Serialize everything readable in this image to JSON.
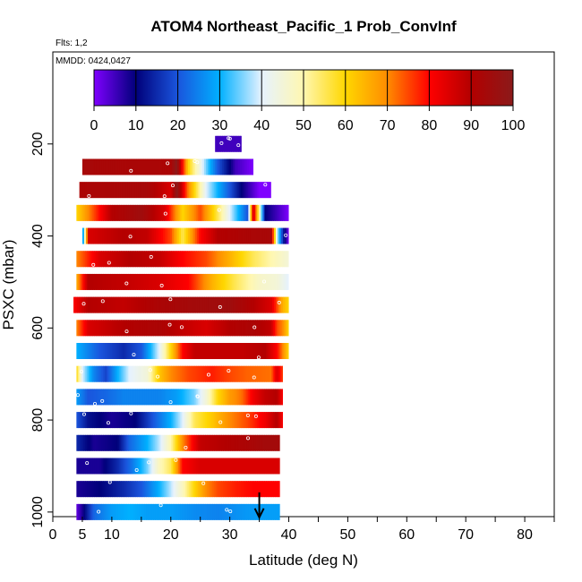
{
  "chart_data": {
    "type": "heatmap",
    "title": "ATOM4 Northeast_Pacific_1 Prob_ConvInf",
    "subtitle_flights": "Flts: 1,2",
    "subtitle_dates": "MMDD: 0424,0427",
    "xlabel": "Latitude (deg N)",
    "ylabel": "PSXC (mbar)",
    "xlim": [
      0,
      85
    ],
    "ylim": [
      1010,
      0
    ],
    "x_ticks": [
      "0",
      "5",
      "10",
      "20",
      "30",
      "40",
      "50",
      "60",
      "70",
      "80"
    ],
    "x_tick_values": [
      0,
      5,
      10,
      20,
      30,
      40,
      50,
      60,
      70,
      80
    ],
    "x_minor_ticks": [
      15,
      25,
      35,
      45,
      55,
      65,
      75,
      85
    ],
    "y_ticks": [
      "200",
      "400",
      "600",
      "800",
      "1000"
    ],
    "y_tick_values": [
      200,
      400,
      600,
      800,
      1000
    ],
    "colorbar": {
      "min": 0,
      "max": 100,
      "tick_labels": [
        "0",
        "10",
        "20",
        "30",
        "40",
        "50",
        "60",
        "70",
        "80",
        "90",
        "100"
      ],
      "tick_values": [
        0,
        10,
        20,
        30,
        40,
        50,
        60,
        70,
        80,
        90,
        100
      ],
      "stops": [
        "#7f00ff",
        "#00007a",
        "#1a55dd",
        "#00b0ff",
        "#e6f2ff",
        "#fff7b0",
        "#ffd700",
        "#ff8c00",
        "#ff0000",
        "#b30000",
        "#8b1a1a"
      ]
    },
    "marker_color": "#ffffff",
    "arrow": {
      "latitude": 35,
      "pressure": 1000
    },
    "bins": [
      {
        "p": 200,
        "lat0": 27.5,
        "lat1": 32,
        "points": [
          [
            27.5,
            5
          ],
          [
            32,
            5
          ]
        ]
      },
      {
        "p": 250,
        "lat0": 5,
        "lat1": 34,
        "points": [
          [
            5,
            93
          ],
          [
            20,
            92
          ],
          [
            21,
            100
          ],
          [
            23,
            60
          ],
          [
            26,
            35
          ],
          [
            28,
            20
          ],
          [
            31,
            5
          ],
          [
            34,
            0
          ]
        ]
      },
      {
        "p": 300,
        "lat0": 4.5,
        "lat1": 37,
        "points": [
          [
            4.5,
            92
          ],
          [
            16,
            93
          ],
          [
            20,
            85
          ],
          [
            21,
            100
          ],
          [
            23,
            70
          ],
          [
            26,
            40
          ],
          [
            29,
            25
          ],
          [
            32,
            10
          ],
          [
            35,
            0
          ],
          [
            37,
            0
          ]
        ]
      },
      {
        "p": 350,
        "lat0": 4,
        "lat1": 40,
        "points": [
          [
            4,
            60
          ],
          [
            7,
            75
          ],
          [
            10,
            90
          ],
          [
            15,
            95
          ],
          [
            19,
            85
          ],
          [
            22,
            60
          ],
          [
            25,
            75
          ],
          [
            28,
            55
          ],
          [
            30,
            40
          ],
          [
            33,
            20
          ],
          [
            34,
            90
          ],
          [
            36,
            10
          ],
          [
            38,
            5
          ],
          [
            40,
            0
          ]
        ]
      },
      {
        "p": 400,
        "lat0": 5,
        "lat1": 40,
        "points": [
          [
            5,
            20
          ],
          [
            6,
            85
          ],
          [
            12,
            90
          ],
          [
            16,
            88
          ],
          [
            20,
            75
          ],
          [
            22,
            55
          ],
          [
            25,
            80
          ],
          [
            28,
            90
          ],
          [
            33,
            92
          ],
          [
            37,
            93
          ],
          [
            38,
            40
          ],
          [
            39,
            15
          ],
          [
            40,
            0
          ]
        ]
      },
      {
        "p": 450,
        "lat0": 4,
        "lat1": 40,
        "points": [
          [
            4,
            70
          ],
          [
            8,
            85
          ],
          [
            13,
            90
          ],
          [
            18,
            88
          ],
          [
            22,
            80
          ],
          [
            26,
            75
          ],
          [
            30,
            65
          ],
          [
            34,
            55
          ],
          [
            37,
            50
          ],
          [
            40,
            45
          ]
        ]
      },
      {
        "p": 500,
        "lat0": 4,
        "lat1": 40,
        "points": [
          [
            4,
            65
          ],
          [
            6,
            90
          ],
          [
            12,
            88
          ],
          [
            18,
            85
          ],
          [
            23,
            80
          ],
          [
            27,
            65
          ],
          [
            31,
            55
          ],
          [
            35,
            47
          ],
          [
            38,
            45
          ],
          [
            40,
            40
          ]
        ]
      },
      {
        "p": 550,
        "lat0": 3.5,
        "lat1": 40,
        "points": [
          [
            3.5,
            80
          ],
          [
            6,
            90
          ],
          [
            12,
            88
          ],
          [
            18,
            92
          ],
          [
            24,
            94
          ],
          [
            30,
            95
          ],
          [
            34,
            90
          ],
          [
            37,
            85
          ],
          [
            38,
            75
          ],
          [
            39,
            65
          ],
          [
            40,
            60
          ]
        ]
      },
      {
        "p": 600,
        "lat0": 4,
        "lat1": 40,
        "points": [
          [
            4,
            70
          ],
          [
            6,
            85
          ],
          [
            12,
            90
          ],
          [
            18,
            92
          ],
          [
            22,
            88
          ],
          [
            26,
            85
          ],
          [
            30,
            90
          ],
          [
            34,
            92
          ],
          [
            37,
            88
          ],
          [
            38,
            75
          ],
          [
            39,
            70
          ],
          [
            40,
            60
          ]
        ]
      },
      {
        "p": 650,
        "lat0": 4,
        "lat1": 40,
        "points": [
          [
            4,
            30
          ],
          [
            6,
            25
          ],
          [
            8,
            20
          ],
          [
            12,
            15
          ],
          [
            15,
            20
          ],
          [
            18,
            40
          ],
          [
            20,
            60
          ],
          [
            22,
            80
          ],
          [
            24,
            88
          ],
          [
            28,
            88
          ],
          [
            32,
            88
          ],
          [
            36,
            90
          ],
          [
            38,
            80
          ],
          [
            39,
            70
          ],
          [
            40,
            60
          ]
        ]
      },
      {
        "p": 700,
        "lat0": 4,
        "lat1": 39,
        "points": [
          [
            4,
            60
          ],
          [
            5,
            40
          ],
          [
            7,
            25
          ],
          [
            9,
            18
          ],
          [
            11,
            30
          ],
          [
            13,
            40
          ],
          [
            16,
            45
          ],
          [
            18,
            62
          ],
          [
            20,
            70
          ],
          [
            23,
            75
          ],
          [
            27,
            78
          ],
          [
            30,
            75
          ],
          [
            33,
            73
          ],
          [
            37,
            72
          ],
          [
            38,
            85
          ],
          [
            39,
            75
          ]
        ]
      },
      {
        "p": 750,
        "lat0": 4,
        "lat1": 39,
        "points": [
          [
            4,
            28
          ],
          [
            6,
            20
          ],
          [
            9,
            22
          ],
          [
            12,
            25
          ],
          [
            15,
            25
          ],
          [
            18,
            25
          ],
          [
            21,
            28
          ],
          [
            24,
            35
          ],
          [
            26,
            45
          ],
          [
            28,
            60
          ],
          [
            30,
            68
          ],
          [
            32,
            72
          ],
          [
            34,
            82
          ],
          [
            36,
            88
          ],
          [
            38,
            90
          ],
          [
            39,
            80
          ]
        ]
      },
      {
        "p": 800,
        "lat0": 4,
        "lat1": 39,
        "points": [
          [
            4,
            20
          ],
          [
            6,
            12
          ],
          [
            10,
            8
          ],
          [
            14,
            10
          ],
          [
            17,
            20
          ],
          [
            20,
            30
          ],
          [
            22,
            40
          ],
          [
            24,
            55
          ],
          [
            27,
            62
          ],
          [
            30,
            70
          ],
          [
            33,
            75
          ],
          [
            36,
            82
          ],
          [
            38,
            90
          ],
          [
            39,
            80
          ]
        ]
      },
      {
        "p": 850,
        "lat0": 4,
        "lat1": 38.5,
        "points": [
          [
            4,
            15
          ],
          [
            7,
            8
          ],
          [
            11,
            10
          ],
          [
            13,
            22
          ],
          [
            16,
            30
          ],
          [
            18,
            38
          ],
          [
            20,
            50
          ],
          [
            22,
            70
          ],
          [
            25,
            88
          ],
          [
            29,
            90
          ],
          [
            33,
            92
          ],
          [
            36,
            94
          ],
          [
            38.5,
            94
          ]
        ]
      },
      {
        "p": 900,
        "lat0": 4,
        "lat1": 38.5,
        "points": [
          [
            4,
            8
          ],
          [
            8,
            8
          ],
          [
            11,
            15
          ],
          [
            13,
            22
          ],
          [
            16,
            35
          ],
          [
            18,
            48
          ],
          [
            20,
            55
          ],
          [
            22,
            80
          ],
          [
            25,
            85
          ],
          [
            30,
            85
          ],
          [
            34,
            85
          ],
          [
            38.5,
            85
          ]
        ]
      },
      {
        "p": 950,
        "lat0": 4,
        "lat1": 38.5,
        "points": [
          [
            4,
            8
          ],
          [
            8,
            10
          ],
          [
            12,
            15
          ],
          [
            15,
            20
          ],
          [
            18,
            30
          ],
          [
            20,
            38
          ],
          [
            22,
            48
          ],
          [
            24,
            60
          ],
          [
            26,
            70
          ],
          [
            28,
            75
          ],
          [
            31,
            78
          ],
          [
            34,
            80
          ],
          [
            38.5,
            80
          ]
        ]
      },
      {
        "p": 1000,
        "lat0": 4,
        "lat1": 38.5,
        "points": [
          [
            4,
            2
          ],
          [
            5,
            8
          ],
          [
            7,
            22
          ],
          [
            10,
            28
          ],
          [
            13,
            30
          ],
          [
            16,
            28
          ],
          [
            20,
            28
          ],
          [
            24,
            26
          ],
          [
            28,
            25
          ],
          [
            32,
            27
          ],
          [
            35,
            28
          ],
          [
            38.5,
            28
          ]
        ]
      }
    ]
  }
}
